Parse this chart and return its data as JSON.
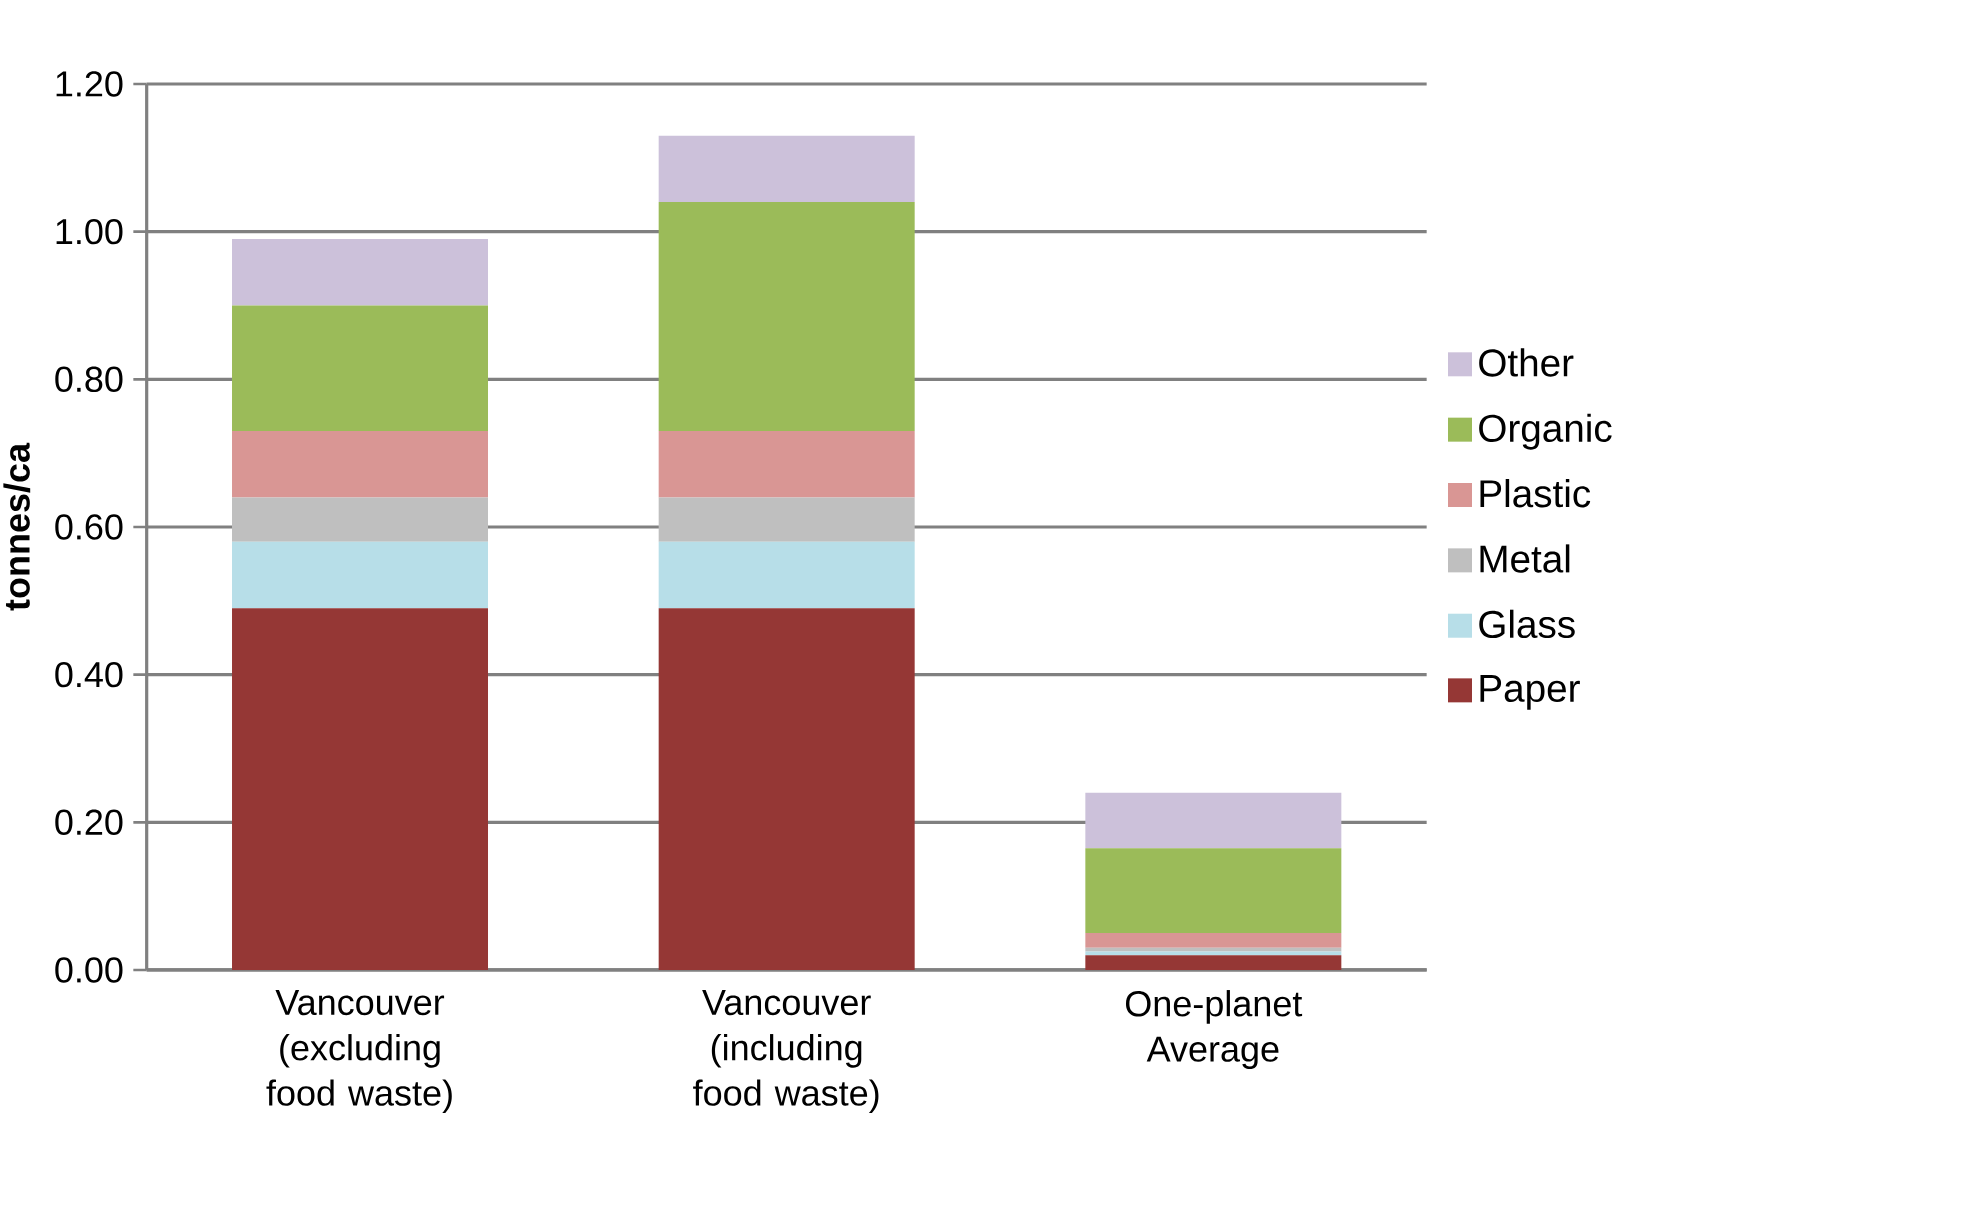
{
  "chart_data": {
    "type": "bar",
    "stacked": true,
    "ylabel": "tonnes/ca",
    "categories": [
      "Vancouver (excluding food waste)",
      "Vancouver (including food waste)",
      "One-planet Average"
    ],
    "series": [
      {
        "name": "Paper",
        "color": "#953735",
        "values": [
          0.49,
          0.49,
          0.02
        ]
      },
      {
        "name": "Glass",
        "color": "#b7dee8",
        "values": [
          0.09,
          0.09,
          0.005
        ]
      },
      {
        "name": "Metal",
        "color": "#bfbfbf",
        "values": [
          0.06,
          0.06,
          0.005
        ]
      },
      {
        "name": "Plastic",
        "color": "#d99694",
        "values": [
          0.09,
          0.09,
          0.02
        ]
      },
      {
        "name": "Organic",
        "color": "#9bbb59",
        "values": [
          0.17,
          0.31,
          0.115
        ]
      },
      {
        "name": "Other",
        "color": "#ccc1da",
        "values": [
          0.09,
          0.09,
          0.075
        ]
      }
    ],
    "ylim": [
      0,
      1.2
    ],
    "yticks": [
      {
        "value": 0,
        "label": "0.00"
      },
      {
        "value": 0.2,
        "label": "0.20"
      },
      {
        "value": 0.4,
        "label": "0.40"
      },
      {
        "value": 0.6,
        "label": "0.60"
      },
      {
        "value": 0.8,
        "label": "0.80"
      },
      {
        "value": 1.0,
        "label": "1.00"
      },
      {
        "value": 1.2,
        "label": "1.20"
      }
    ],
    "grid": "y",
    "legend": "right"
  }
}
